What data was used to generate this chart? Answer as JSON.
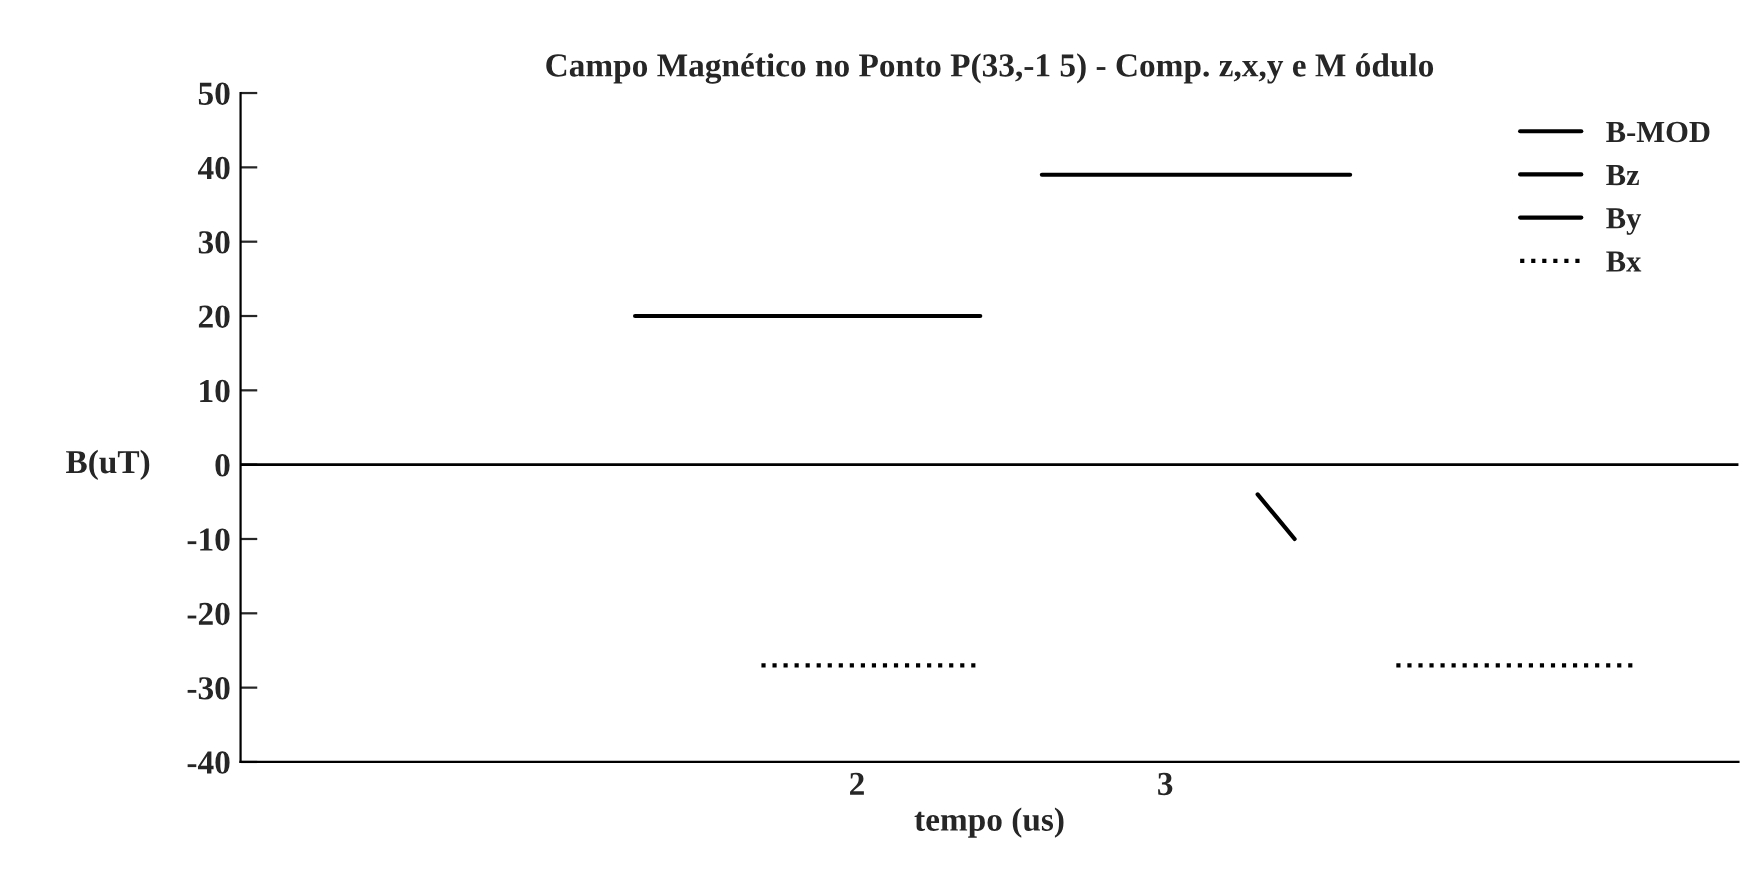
{
  "chart_data": {
    "type": "line",
    "title": "Campo Magnético no Ponto P(33,-1 5) - Comp. z,x,y e M ódulo",
    "xlabel": "tempo (us)",
    "ylabel": "B(uT)",
    "xlim": [
      0,
      4.86
    ],
    "xticks": [
      2,
      3
    ],
    "ylim": [
      -40,
      50
    ],
    "yticks": [
      -40,
      -30,
      -20,
      -10,
      0,
      10,
      20,
      30,
      40,
      50
    ],
    "series": [
      {
        "name": "B-MOD",
        "color": "#000000",
        "line_style": "solid",
        "x": [
          2.6,
          2.8,
          3.0,
          3.2,
          3.4,
          3.6
        ],
        "values": [
          39,
          39,
          39,
          39,
          39,
          39
        ]
      },
      {
        "name": "Bz",
        "color": "#000000",
        "line_style": "solid",
        "x": [
          1.28,
          1.48,
          1.68,
          1.79,
          1.99,
          2.22,
          2.4
        ],
        "values": [
          20,
          20,
          20,
          20,
          20,
          20,
          20
        ]
      },
      {
        "name": "By",
        "color": "#000000",
        "line_style": "solid",
        "x": [
          3.3,
          3.36,
          3.42
        ],
        "values": [
          -4,
          -7,
          -10
        ]
      },
      {
        "name": "Bx",
        "color": "#000000",
        "line_style": "dotted",
        "x": [
          1.69,
          1.9,
          2.1,
          2.39,
          3.0,
          3.75,
          4.1,
          4.53
        ],
        "values": [
          -27,
          -27,
          -27,
          -27,
          null,
          -27,
          -27,
          -27
        ]
      }
    ],
    "ref_lines": [
      {
        "axis": "y",
        "value": 0,
        "color": "#000000"
      }
    ],
    "legend": "top right",
    "grid": false,
    "marker": "none"
  }
}
